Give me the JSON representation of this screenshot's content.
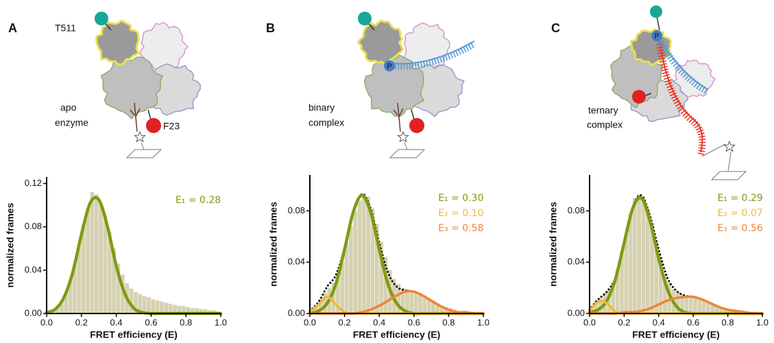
{
  "figure": {
    "panels": [
      {
        "letter": "A",
        "site_top": "T511",
        "state": [
          "apo",
          "enzyme"
        ],
        "site_bottom": "F23"
      },
      {
        "letter": "B",
        "phosphate": "P",
        "state": [
          "binary",
          "complex"
        ]
      },
      {
        "letter": "C",
        "phosphate": "P",
        "state": [
          "ternary",
          "complex"
        ]
      }
    ]
  },
  "chart_data": [
    {
      "type": "histogram",
      "xlabel": "FRET efficiency (E)",
      "ylabel": "normalized frames",
      "color": "#d6d1b0",
      "bins": [
        0,
        0.025,
        0.05,
        0.075,
        0.1,
        0.125,
        0.15,
        0.175,
        0.2,
        0.225,
        0.25,
        0.275,
        0.3,
        0.325,
        0.35,
        0.375,
        0.4,
        0.425,
        0.45,
        0.475,
        0.5,
        0.525,
        0.55,
        0.575,
        0.6,
        0.625,
        0.65,
        0.675,
        0.7,
        0.725,
        0.75,
        0.775,
        0.8,
        0.825,
        0.85,
        0.875,
        0.9,
        0.925,
        0.95,
        0.975,
        1
      ],
      "counts": [
        0.001,
        0.003,
        0.006,
        0.011,
        0.019,
        0.031,
        0.046,
        0.064,
        0.082,
        0.097,
        0.112,
        0.11,
        0.101,
        0.09,
        0.075,
        0.06,
        0.046,
        0.036,
        0.028,
        0.023,
        0.02,
        0.018,
        0.016,
        0.015,
        0.013,
        0.012,
        0.011,
        0.01,
        0.009,
        0.008,
        0.007,
        0.007,
        0.006,
        0.005,
        0.005,
        0.004,
        0.004,
        0.003,
        0.003,
        0.002
      ],
      "xlim": [
        0,
        1
      ],
      "ylim": [
        0,
        0.126
      ],
      "xticks": [
        {
          "value": 0,
          "label": "0.0"
        },
        {
          "value": 0.2,
          "label": "0.2"
        },
        {
          "value": 0.4,
          "label": "0.4"
        },
        {
          "value": 0.6,
          "label": "0.6"
        },
        {
          "value": 0.8,
          "label": "0.8"
        },
        {
          "value": 1,
          "label": "1.0"
        }
      ],
      "yticks": [
        {
          "value": 0,
          "label": "0.00"
        },
        {
          "value": 0.04,
          "label": "0.04"
        },
        {
          "value": 0.08,
          "label": "0.08"
        },
        {
          "value": 0.12,
          "label": "0.12"
        }
      ],
      "series": [
        {
          "name": "E₁ = 0.28",
          "color": "#7f9a12",
          "x": [
            0,
            0.05,
            0.1,
            0.15,
            0.2,
            0.25,
            0.3,
            0.35,
            0.4,
            0.45,
            0.5,
            0.55,
            0.6,
            0.65,
            0.7,
            0.75,
            0.8,
            0.85,
            0.9,
            0.95,
            1
          ],
          "values": [
            0.001,
            0.004,
            0.015,
            0.038,
            0.073,
            0.102,
            0.105,
            0.08,
            0.044,
            0.018,
            0.005,
            0.001,
            0,
            0,
            0,
            0,
            0,
            0,
            0,
            0,
            0
          ]
        }
      ]
    },
    {
      "type": "histogram",
      "xlabel": "FRET efficiency (E)",
      "ylabel": "normalized frames",
      "color": "#d6d1b0",
      "bins": [
        0,
        0.025,
        0.05,
        0.075,
        0.1,
        0.125,
        0.15,
        0.175,
        0.2,
        0.225,
        0.25,
        0.275,
        0.3,
        0.325,
        0.35,
        0.375,
        0.4,
        0.425,
        0.45,
        0.475,
        0.5,
        0.525,
        0.55,
        0.575,
        0.6,
        0.625,
        0.65,
        0.675,
        0.7,
        0.725,
        0.75,
        0.775,
        0.8,
        0.825,
        0.85,
        0.875,
        0.9,
        0.925,
        0.95,
        0.975,
        1
      ],
      "counts": [
        0.002,
        0.006,
        0.011,
        0.016,
        0.02,
        0.024,
        0.03,
        0.04,
        0.055,
        0.068,
        0.08,
        0.088,
        0.094,
        0.091,
        0.082,
        0.07,
        0.056,
        0.044,
        0.034,
        0.027,
        0.023,
        0.02,
        0.019,
        0.018,
        0.017,
        0.016,
        0.014,
        0.012,
        0.01,
        0.008,
        0.006,
        0.005,
        0.004,
        0.003,
        0.002,
        0.002,
        0.001,
        0.001,
        0.001,
        0.0
      ],
      "xlim": [
        0,
        1
      ],
      "ylim": [
        0,
        0.108
      ],
      "xticks": [
        {
          "value": 0,
          "label": "0.0"
        },
        {
          "value": 0.2,
          "label": "0.2"
        },
        {
          "value": 0.4,
          "label": "0.4"
        },
        {
          "value": 0.6,
          "label": "0.6"
        },
        {
          "value": 0.8,
          "label": "0.8"
        },
        {
          "value": 1,
          "label": "1.0"
        }
      ],
      "yticks": [
        {
          "value": 0,
          "label": "0.00"
        },
        {
          "value": 0.04,
          "label": "0.04"
        },
        {
          "value": 0.08,
          "label": "0.08"
        }
      ],
      "series": [
        {
          "color": "#111111",
          "style": "dotted",
          "x": [
            0,
            0.05,
            0.1,
            0.15,
            0.2,
            0.25,
            0.3,
            0.35,
            0.4,
            0.45,
            0.5,
            0.55,
            0.6,
            0.65,
            0.7,
            0.75,
            0.8,
            0.85,
            0.9,
            0.95,
            1
          ],
          "values": [
            0.002,
            0.009,
            0.021,
            0.03,
            0.051,
            0.079,
            0.093,
            0.082,
            0.055,
            0.032,
            0.021,
            0.018,
            0.017,
            0.014,
            0.01,
            0.006,
            0.003,
            0.001,
            0.001,
            0,
            0
          ]
        },
        {
          "name": "E₁ = 0.30",
          "color": "#7f9a12",
          "x": [
            0,
            0.05,
            0.1,
            0.15,
            0.2,
            0.25,
            0.3,
            0.35,
            0.4,
            0.45,
            0.5,
            0.55,
            0.6,
            0.65,
            0.7,
            0.75,
            0.8,
            0.85,
            0.9,
            0.95,
            1
          ],
          "values": [
            0,
            0.002,
            0.008,
            0.023,
            0.05,
            0.079,
            0.092,
            0.079,
            0.05,
            0.023,
            0.008,
            0.002,
            0,
            0,
            0,
            0,
            0,
            0,
            0,
            0,
            0
          ]
        },
        {
          "name": "E₂ = 0.10",
          "color": "#f0b83a",
          "x": [
            0,
            0.05,
            0.1,
            0.15,
            0.2,
            0.25,
            0.3,
            0.35,
            0.4,
            0.45,
            0.5,
            0.55,
            0.6,
            0.65,
            0.7,
            0.75,
            0.8,
            0.85,
            0.9,
            0.95,
            1
          ],
          "values": [
            0.001,
            0.007,
            0.013,
            0.007,
            0.001,
            0,
            0,
            0,
            0,
            0,
            0,
            0,
            0,
            0,
            0,
            0,
            0,
            0,
            0,
            0,
            0
          ]
        },
        {
          "name": "E₃ = 0.58",
          "color": "#ef8435",
          "x": [
            0,
            0.05,
            0.1,
            0.15,
            0.2,
            0.25,
            0.3,
            0.35,
            0.4,
            0.45,
            0.5,
            0.55,
            0.6,
            0.65,
            0.7,
            0.75,
            0.8,
            0.85,
            0.9,
            0.95,
            1
          ],
          "values": [
            0,
            0,
            0,
            0,
            0,
            0,
            0.001,
            0.003,
            0.006,
            0.01,
            0.014,
            0.017,
            0.017,
            0.014,
            0.01,
            0.006,
            0.003,
            0.001,
            0.001,
            0,
            0
          ]
        }
      ]
    },
    {
      "type": "histogram",
      "xlabel": "FRET efficiency (E)",
      "ylabel": "normalized frames",
      "color": "#d6d1b0",
      "bins": [
        0,
        0.025,
        0.05,
        0.075,
        0.1,
        0.125,
        0.15,
        0.175,
        0.2,
        0.225,
        0.25,
        0.275,
        0.3,
        0.325,
        0.35,
        0.375,
        0.4,
        0.425,
        0.45,
        0.475,
        0.5,
        0.525,
        0.55,
        0.575,
        0.6,
        0.625,
        0.65,
        0.675,
        0.7,
        0.725,
        0.75,
        0.775,
        0.8,
        0.825,
        0.85,
        0.875,
        0.9,
        0.925,
        0.95,
        0.975,
        1
      ],
      "counts": [
        0.003,
        0.01,
        0.012,
        0.016,
        0.018,
        0.024,
        0.034,
        0.048,
        0.062,
        0.078,
        0.09,
        0.093,
        0.091,
        0.082,
        0.07,
        0.056,
        0.042,
        0.031,
        0.024,
        0.019,
        0.017,
        0.015,
        0.014,
        0.013,
        0.012,
        0.011,
        0.01,
        0.009,
        0.007,
        0.006,
        0.005,
        0.004,
        0.003,
        0.003,
        0.002,
        0.002,
        0.001,
        0.001,
        0.001,
        0.0
      ],
      "xlim": [
        0,
        1
      ],
      "ylim": [
        0,
        0.108
      ],
      "xticks": [
        {
          "value": 0,
          "label": "0.0"
        },
        {
          "value": 0.2,
          "label": "0.2"
        },
        {
          "value": 0.4,
          "label": "0.4"
        },
        {
          "value": 0.6,
          "label": "0.6"
        },
        {
          "value": 0.8,
          "label": "0.8"
        },
        {
          "value": 1,
          "label": "1.0"
        }
      ],
      "yticks": [
        {
          "value": 0,
          "label": "0.00"
        },
        {
          "value": 0.04,
          "label": "0.04"
        },
        {
          "value": 0.08,
          "label": "0.08"
        }
      ],
      "series": [
        {
          "color": "#111111",
          "style": "dotted",
          "x": [
            0,
            0.05,
            0.1,
            0.15,
            0.2,
            0.25,
            0.3,
            0.35,
            0.4,
            0.45,
            0.5,
            0.55,
            0.6,
            0.65,
            0.7,
            0.75,
            0.8,
            0.85,
            0.9,
            0.95,
            1
          ],
          "values": [
            0.003,
            0.011,
            0.017,
            0.028,
            0.055,
            0.083,
            0.092,
            0.076,
            0.05,
            0.028,
            0.018,
            0.014,
            0.013,
            0.011,
            0.008,
            0.005,
            0.003,
            0.002,
            0.001,
            0,
            0
          ]
        },
        {
          "name": "E₁ = 0.29",
          "color": "#7f9a12",
          "x": [
            0,
            0.05,
            0.1,
            0.15,
            0.2,
            0.25,
            0.3,
            0.35,
            0.4,
            0.45,
            0.5,
            0.55,
            0.6,
            0.65,
            0.7,
            0.75,
            0.8,
            0.85,
            0.9,
            0.95,
            1
          ],
          "values": [
            0.001,
            0.003,
            0.01,
            0.027,
            0.055,
            0.082,
            0.09,
            0.072,
            0.043,
            0.019,
            0.006,
            0.001,
            0,
            0,
            0,
            0,
            0,
            0,
            0,
            0,
            0
          ]
        },
        {
          "name": "E₂ = 0.07",
          "color": "#f0b83a",
          "x": [
            0,
            0.05,
            0.1,
            0.15,
            0.2,
            0.25,
            0.3,
            0.35,
            0.4,
            0.45,
            0.5,
            0.55,
            0.6,
            0.65,
            0.7,
            0.75,
            0.8,
            0.85,
            0.9,
            0.95,
            1
          ],
          "values": [
            0.002,
            0.009,
            0.008,
            0.001,
            0,
            0,
            0,
            0,
            0,
            0,
            0,
            0,
            0,
            0,
            0,
            0,
            0,
            0,
            0,
            0,
            0
          ]
        },
        {
          "name": "E₃ = 0.56",
          "color": "#ef8435",
          "x": [
            0,
            0.05,
            0.1,
            0.15,
            0.2,
            0.25,
            0.3,
            0.35,
            0.4,
            0.45,
            0.5,
            0.55,
            0.6,
            0.65,
            0.7,
            0.75,
            0.8,
            0.85,
            0.9,
            0.95,
            1
          ],
          "values": [
            0,
            0,
            0,
            0,
            0.001,
            0.001,
            0.002,
            0.004,
            0.007,
            0.01,
            0.012,
            0.013,
            0.013,
            0.011,
            0.008,
            0.005,
            0.003,
            0.002,
            0.001,
            0,
            0
          ]
        }
      ]
    }
  ]
}
